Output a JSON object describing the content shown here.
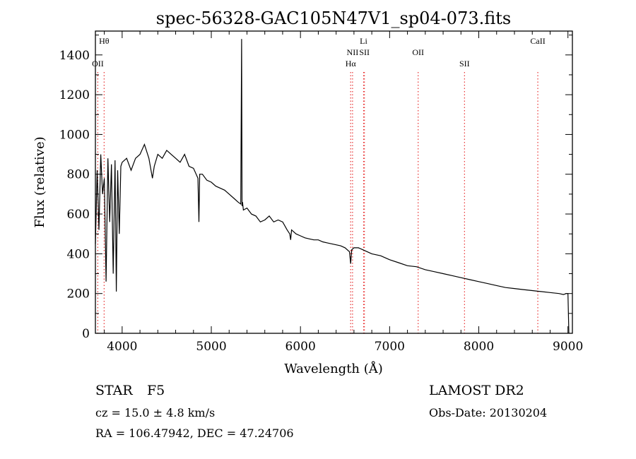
{
  "chart_data": {
    "type": "line",
    "title": "spec-56328-GAC105N47V1_sp04-073.fits",
    "xlabel": "Wavelength (Å)",
    "ylabel": "Flux (relative)",
    "xlim": [
      3700,
      9050
    ],
    "ylim": [
      0,
      1520
    ],
    "xticks": [
      4000,
      5000,
      6000,
      7000,
      8000,
      9000
    ],
    "yticks": [
      0,
      200,
      400,
      600,
      800,
      1000,
      1200,
      1400
    ],
    "grid": false,
    "series": [
      {
        "x": [
          3700,
          3720,
          3740,
          3760,
          3780,
          3800,
          3820,
          3840,
          3860,
          3880,
          3900,
          3920,
          3935,
          3950,
          3968,
          3985,
          4000,
          4050,
          4100,
          4150,
          4200,
          4250,
          4300,
          4340,
          4360,
          4400,
          4450,
          4500,
          4550,
          4600,
          4650,
          4700,
          4750,
          4800,
          4850,
          4861,
          4870,
          4900,
          4950,
          5000,
          5050,
          5100,
          5150,
          5200,
          5250,
          5300,
          5330,
          5340,
          5345,
          5350,
          5360,
          5400,
          5450,
          5500,
          5550,
          5600,
          5650,
          5700,
          5750,
          5800,
          5850,
          5880,
          5890,
          5900,
          5950,
          6000,
          6050,
          6100,
          6150,
          6200,
          6250,
          6300,
          6350,
          6400,
          6450,
          6500,
          6550,
          6563,
          6575,
          6600,
          6650,
          6700,
          6750,
          6800,
          6900,
          7000,
          7100,
          7200,
          7300,
          7400,
          7500,
          7600,
          7700,
          7800,
          7900,
          8000,
          8100,
          8200,
          8300,
          8400,
          8500,
          8600,
          8700,
          8800,
          8900,
          8950,
          8980,
          9000,
          9010
        ],
        "y": [
          450,
          820,
          520,
          900,
          700,
          780,
          260,
          880,
          560,
          850,
          300,
          870,
          210,
          820,
          500,
          840,
          860,
          880,
          820,
          880,
          900,
          950,
          880,
          780,
          840,
          900,
          880,
          920,
          900,
          880,
          860,
          900,
          840,
          830,
          780,
          560,
          800,
          800,
          770,
          760,
          740,
          730,
          720,
          700,
          680,
          660,
          650,
          1480,
          640,
          660,
          620,
          630,
          600,
          590,
          560,
          570,
          590,
          560,
          570,
          560,
          520,
          500,
          470,
          520,
          500,
          490,
          480,
          475,
          470,
          470,
          460,
          455,
          450,
          445,
          440,
          430,
          410,
          350,
          420,
          430,
          430,
          420,
          410,
          400,
          390,
          370,
          355,
          340,
          335,
          320,
          310,
          300,
          290,
          280,
          270,
          260,
          250,
          240,
          230,
          225,
          220,
          215,
          210,
          205,
          200,
          195,
          200,
          200,
          0
        ]
      }
    ],
    "line_markers": [
      {
        "label": "Hθ",
        "x": 3798,
        "row": 0
      },
      {
        "label": "OII",
        "x": 3727,
        "row": 1
      },
      {
        "label": "Hα",
        "x": 6563,
        "row": 1
      },
      {
        "label": "NII",
        "x": 6584,
        "row": 0.5
      },
      {
        "label": "Li",
        "x": 6708,
        "row": 0
      },
      {
        "label": "SII",
        "x": 6717,
        "row": 0.5
      },
      {
        "label": "OII",
        "x": 7320,
        "row": 0.5
      },
      {
        "label": "SII",
        "x": 7840,
        "row": 1
      },
      {
        "label": "CaII",
        "x": 8662,
        "row": 0
      }
    ]
  },
  "info": {
    "class": "STAR",
    "subclass": "F5",
    "survey": "LAMOST DR2",
    "redshift": "cz = 15.0 ± 4.8 km/s",
    "obs_date": "Obs-Date: 20130204",
    "coords": "RA = 106.47942, DEC =  47.24706"
  },
  "colors": {
    "spectrum": "#000000",
    "marker_line": "#e83030",
    "axes": "#000000"
  }
}
